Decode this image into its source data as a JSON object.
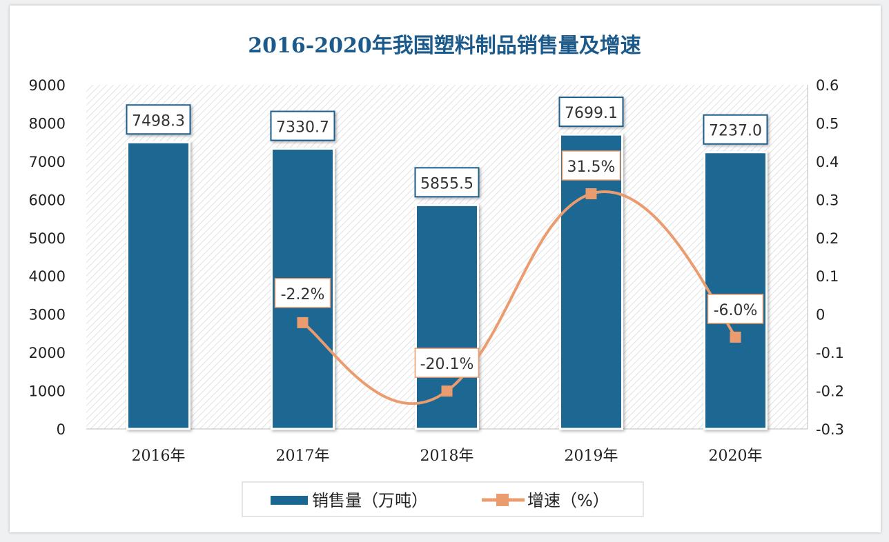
{
  "chart_data": {
    "type": "bar+line",
    "title": "2016-2020年我国塑料制品销售量及增速",
    "categories": [
      "2016年",
      "2017年",
      "2018年",
      "2019年",
      "2020年"
    ],
    "series": [
      {
        "name": "销售量（万吨）",
        "type": "bar",
        "axis": "left",
        "values": [
          7498.3,
          7330.7,
          5855.5,
          7699.1,
          7237.0
        ],
        "labels": [
          "7498.3",
          "7330.7",
          "5855.5",
          "7699.1",
          "7237.0"
        ],
        "color": "#1a6792"
      },
      {
        "name": "增速（%）",
        "type": "line",
        "axis": "right",
        "smooth": true,
        "values": [
          null,
          -0.022,
          -0.201,
          0.315,
          -0.06
        ],
        "labels": [
          "",
          "-2.2%",
          "-20.1%",
          "31.5%",
          "-6.0%"
        ],
        "color": "#eb9c6e"
      }
    ],
    "left_axis": {
      "ylim": [
        0,
        9000
      ],
      "ticks": [
        "0",
        "1000",
        "2000",
        "3000",
        "4000",
        "5000",
        "6000",
        "7000",
        "8000",
        "9000"
      ]
    },
    "right_axis": {
      "ylim": [
        -0.3,
        0.6
      ],
      "ticks": [
        "-0.3",
        "-0.2",
        "-0.1",
        "0",
        "0.1",
        "0.2",
        "0.3",
        "0.4",
        "0.5",
        "0.6"
      ]
    },
    "legend": "bottom",
    "background": "diagonal-hatch"
  }
}
